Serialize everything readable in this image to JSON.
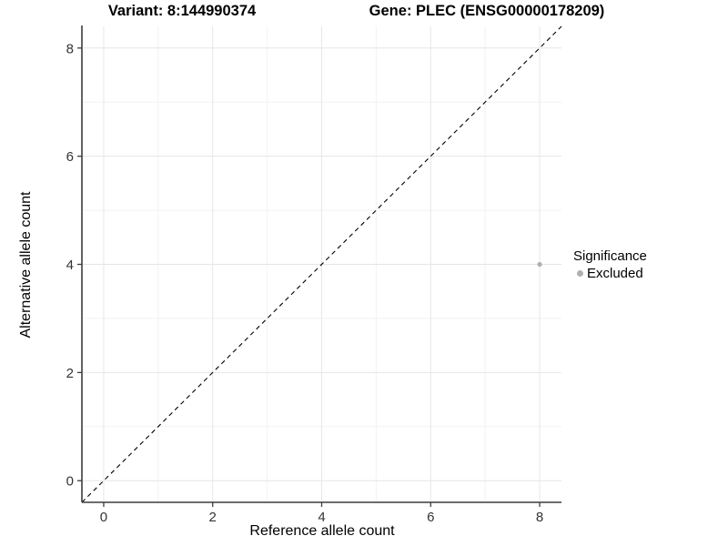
{
  "chart_data": {
    "type": "scatter",
    "title_left": "Variant: 8:144990374",
    "title_right": "Gene: PLEC (ENSG00000178209)",
    "xlabel": "Reference allele count",
    "ylabel": "Alternative allele count",
    "xlim": [
      -0.4,
      8.4
    ],
    "ylim": [
      -0.4,
      8.4
    ],
    "x_major_ticks": [
      0,
      2,
      4,
      6,
      8
    ],
    "y_major_ticks": [
      0,
      2,
      4,
      6,
      8
    ],
    "x_minor_ticks": [
      1,
      3,
      5,
      7
    ],
    "y_minor_ticks": [
      1,
      3,
      5,
      7
    ],
    "grid": "major+minor",
    "reference_line": {
      "slope": 1,
      "intercept": 0,
      "style": "dashed",
      "color": "#000000"
    },
    "points": [
      {
        "x": 8,
        "y": 4,
        "series": "Excluded"
      }
    ],
    "legend": {
      "title": "Significance",
      "position": "right",
      "items": [
        {
          "label": "Excluded",
          "color": "#b0b0b0"
        }
      ]
    },
    "colors": {
      "point": "#b0b0b0",
      "grid_major": "#e6e6e6",
      "grid_minor": "#f2f2f2",
      "axis_line": "#3c3c3c",
      "tick_label": "#333333",
      "background": "#ffffff"
    }
  }
}
